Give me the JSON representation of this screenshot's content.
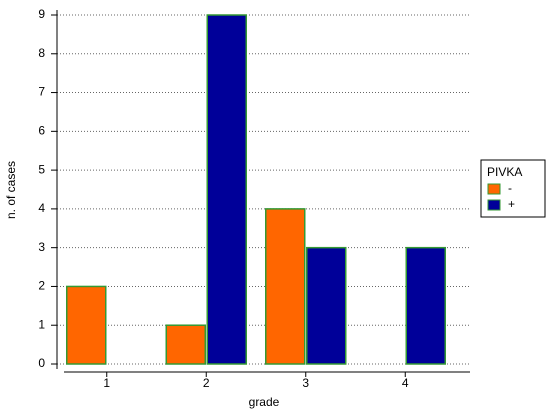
{
  "chart_data": {
    "type": "bar",
    "x_label": "grade",
    "y_label": "n. of cases",
    "categories": [
      "1",
      "2",
      "3",
      "4"
    ],
    "series": [
      {
        "name": "-",
        "color": "#ff6600",
        "values": [
          2,
          1,
          4,
          0
        ]
      },
      {
        "name": "+",
        "color": "#000099",
        "values": [
          0,
          9,
          3,
          3
        ]
      }
    ],
    "legend_title": "PIVKA",
    "legend_position": "right",
    "ylim": [
      0,
      9
    ],
    "yticks": [
      0,
      1,
      2,
      3,
      4,
      5,
      6,
      7,
      8,
      9
    ],
    "grid": true,
    "bar_edge_color": "#339933"
  }
}
